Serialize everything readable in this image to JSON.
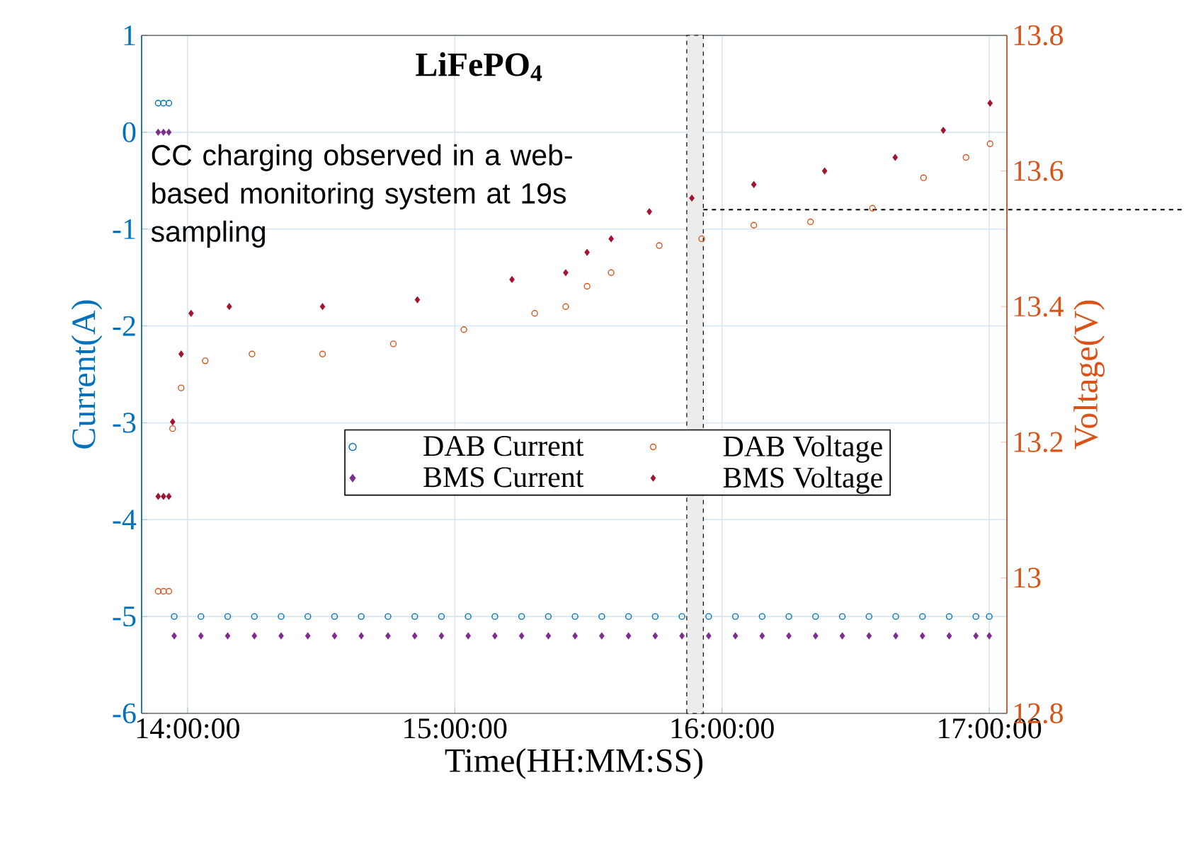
{
  "chart_data": {
    "type": "scatter",
    "title": "LiFePO$_{4}$",
    "xlabel": "Time(HH:MM:SS)",
    "ylabel": "Current(A)",
    "y2label": "Voltage(V)",
    "annotations": [
      "CC charging observed in a web-based monitoring system at 19s sampling"
    ],
    "xlim": [
      13.828,
      17.066
    ],
    "xticks": [
      {
        "value": 14,
        "label": "14:00:00"
      },
      {
        "value": 15,
        "label": "15:00:00"
      },
      {
        "value": 16,
        "label": "16:00:00"
      },
      {
        "value": 17,
        "label": "17:00:00"
      }
    ],
    "ylim": [
      -6,
      1
    ],
    "yticks": [
      -6,
      -5,
      -4,
      -3,
      -2,
      -1,
      0,
      1
    ],
    "y2lim": [
      12.8,
      13.8
    ],
    "y2ticks": [
      12.8,
      13,
      13.2,
      13.4,
      13.6,
      13.8
    ],
    "grid": true,
    "legend": "center",
    "series": [
      {
        "name": "DAB Current",
        "color": "#0072bd",
        "marker": "circle",
        "x": [
          13.89,
          13.91,
          13.93,
          13.95,
          14.05,
          14.15,
          14.25,
          14.35,
          14.45,
          14.55,
          14.65,
          14.75,
          14.85,
          14.95,
          15.05,
          15.15,
          15.25,
          15.35,
          15.45,
          15.55,
          15.65,
          15.75,
          15.85,
          15.95,
          16.05,
          16.15,
          16.25,
          16.35,
          16.45,
          16.55,
          16.65,
          16.75,
          16.85,
          16.95,
          17.0
        ],
        "values": [
          0.3,
          0.3,
          0.3,
          -5.0,
          -5.0,
          -5.0,
          -5.0,
          -5.0,
          -5.0,
          -5.0,
          -5.0,
          -5.0,
          -5.0,
          -5.0,
          -5.0,
          -5.0,
          -5.0,
          -5.0,
          -5.0,
          -5.0,
          -5.0,
          -5.0,
          -5.0,
          -5.0,
          -5.0,
          -5.0,
          -5.0,
          -5.0,
          -5.0,
          -5.0,
          -5.0,
          -5.0,
          -5.0,
          -5.0,
          -5.0
        ]
      },
      {
        "name": "BMS Current",
        "color": "#7e2f8e",
        "marker": "diamond",
        "x": [
          13.89,
          13.91,
          13.93,
          13.95,
          14.05,
          14.15,
          14.25,
          14.35,
          14.45,
          14.55,
          14.65,
          14.75,
          14.85,
          14.95,
          15.05,
          15.15,
          15.25,
          15.35,
          15.45,
          15.55,
          15.65,
          15.75,
          15.85,
          15.95,
          16.05,
          16.15,
          16.25,
          16.35,
          16.45,
          16.55,
          16.65,
          16.75,
          16.85,
          16.95,
          17.0
        ],
        "values": [
          0.0,
          0.0,
          0.0,
          -5.2,
          -5.2,
          -5.2,
          -5.2,
          -5.2,
          -5.2,
          -5.2,
          -5.2,
          -5.2,
          -5.2,
          -5.2,
          -5.2,
          -5.2,
          -5.2,
          -5.2,
          -5.2,
          -5.2,
          -5.2,
          -5.2,
          -5.2,
          -5.2,
          -5.2,
          -5.2,
          -5.2,
          -5.2,
          -5.2,
          -5.2,
          -5.2,
          -5.2,
          -5.2,
          -5.2,
          -5.2
        ]
      },
      {
        "name": "DAB Voltage",
        "color": "#d95319",
        "marker": "circle",
        "axis": "y2",
        "x": [
          13.89,
          13.91,
          13.93,
          13.944,
          13.976,
          14.066,
          14.241,
          14.505,
          14.77,
          15.034,
          15.299,
          15.415,
          15.495,
          15.585,
          15.765,
          15.924,
          16.119,
          16.331,
          16.563,
          16.754,
          16.913,
          17.003
        ],
        "values": [
          12.98,
          12.98,
          12.98,
          13.22,
          13.28,
          13.32,
          13.33,
          13.33,
          13.345,
          13.366,
          13.39,
          13.4,
          13.43,
          13.45,
          13.49,
          13.5,
          13.52,
          13.525,
          13.545,
          13.59,
          13.62,
          13.64
        ]
      },
      {
        "name": "BMS Voltage",
        "color": "#a2142f",
        "marker": "diamond",
        "axis": "y2",
        "x": [
          13.89,
          13.91,
          13.93,
          13.944,
          13.976,
          14.013,
          14.156,
          14.505,
          14.86,
          15.214,
          15.415,
          15.495,
          15.585,
          15.728,
          15.887,
          16.119,
          16.384,
          16.648,
          16.828,
          17.003
        ],
        "values": [
          13.12,
          13.12,
          13.12,
          13.23,
          13.33,
          13.39,
          13.4,
          13.4,
          13.41,
          13.44,
          13.45,
          13.48,
          13.5,
          13.54,
          13.56,
          13.58,
          13.6,
          13.62,
          13.66,
          13.7
        ]
      }
    ],
    "bands": [
      {
        "axis": "x",
        "from": 15.868,
        "to": 15.93,
        "color": "#ececec"
      }
    ],
    "ref_lines": [
      {
        "axis": "y2",
        "value": 13.543,
        "color": "#000000",
        "line_style": "dashed"
      }
    ]
  }
}
